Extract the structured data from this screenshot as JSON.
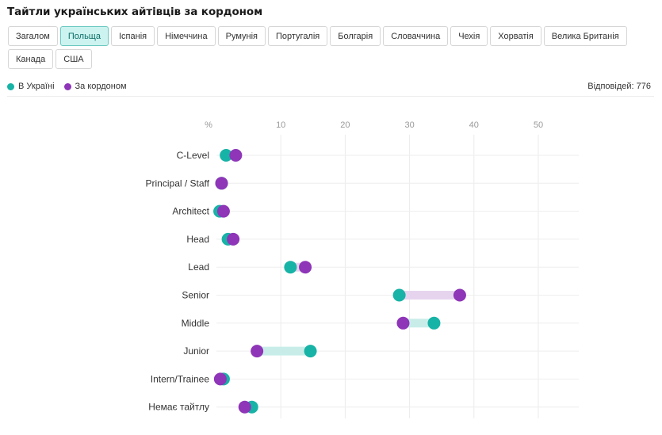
{
  "title": "Тайтли українських айтівців за кордоном",
  "tabs": [
    {
      "label": "Загалом",
      "active": false
    },
    {
      "label": "Польща",
      "active": true
    },
    {
      "label": "Іспанія",
      "active": false
    },
    {
      "label": "Німеччина",
      "active": false
    },
    {
      "label": "Румунія",
      "active": false
    },
    {
      "label": "Португалія",
      "active": false
    },
    {
      "label": "Болгарія",
      "active": false
    },
    {
      "label": "Словаччина",
      "active": false
    },
    {
      "label": "Чехія",
      "active": false
    },
    {
      "label": "Хорватія",
      "active": false
    },
    {
      "label": "Велика Британія",
      "active": false
    },
    {
      "label": "Канада",
      "active": false
    },
    {
      "label": "США",
      "active": false
    }
  ],
  "legend": {
    "ukraine_label": "В Україні",
    "abroad_label": "За кордоном",
    "ukraine_color": "#17b3a6",
    "abroad_color": "#8e35b8"
  },
  "responses": "Відповідей: 776",
  "chart_data": {
    "type": "dumbbell",
    "title": "Тайтли українських айтівців за кордоном",
    "xlabel": "%",
    "xlim": [
      0,
      55
    ],
    "xticks": [
      10,
      20,
      30,
      40,
      50
    ],
    "grid": true,
    "categories": [
      "C-Level",
      "Principal / Staff",
      "Architect",
      "Head",
      "Lead",
      "Senior",
      "Middle",
      "Junior",
      "Intern/Trainee",
      "Немає тайтлу"
    ],
    "series": [
      {
        "name": "В Україні",
        "color": "#17b3a6",
        "values": [
          1.5,
          0.8,
          0.5,
          1.8,
          11.5,
          28.4,
          33.8,
          14.6,
          1.1,
          5.5
        ]
      },
      {
        "name": "За кордоном",
        "color": "#8e35b8",
        "values": [
          3.0,
          0.8,
          1.1,
          2.6,
          13.8,
          37.8,
          29.0,
          6.3,
          0.6,
          4.4
        ]
      }
    ]
  }
}
